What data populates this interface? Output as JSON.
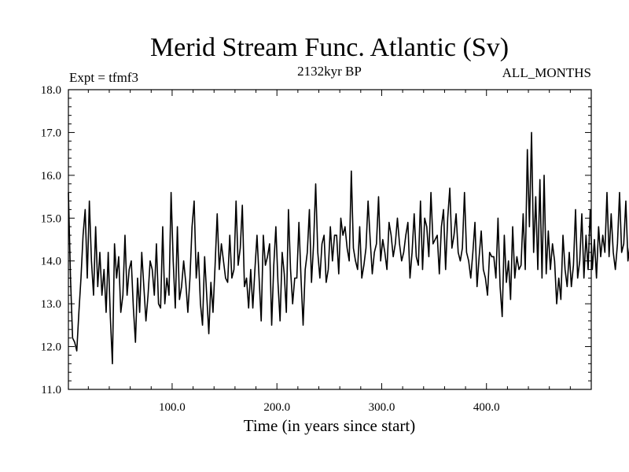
{
  "chart_data": {
    "type": "line",
    "title": "Merid Stream Func. Atlantic (Sv)",
    "subtitle_left": "Expt = tfmf3",
    "subtitle_center": "2132kyr BP",
    "subtitle_right": "ALL_MONTHS",
    "xlabel": "Time (in years since start)",
    "ylabel": "",
    "xlim": [
      1,
      500
    ],
    "ylim": [
      11.0,
      18.0
    ],
    "x_ticks": [
      100,
      200,
      300,
      400
    ],
    "x_tick_labels": [
      "100.0",
      "200.0",
      "300.0",
      "400.0"
    ],
    "y_ticks": [
      11,
      12,
      13,
      14,
      15,
      16,
      17,
      18
    ],
    "y_tick_labels": [
      "11.0",
      "12.0",
      "13.0",
      "14.0",
      "15.0",
      "16.0",
      "17.0",
      "18.0"
    ],
    "series": [
      {
        "name": "AMOC",
        "color": "#000000",
        "x_start": 1,
        "x_step": 2,
        "values": [
          15.6,
          13.6,
          12.2,
          12.1,
          11.9,
          12.8,
          13.6,
          14.6,
          15.2,
          13.6,
          15.4,
          14.0,
          13.2,
          14.8,
          13.4,
          14.2,
          13.2,
          13.8,
          12.8,
          14.2,
          12.7,
          11.6,
          14.4,
          13.6,
          14.1,
          12.8,
          13.2,
          14.6,
          13.2,
          13.8,
          14.0,
          12.9,
          12.1,
          13.6,
          12.8,
          14.2,
          13.4,
          12.6,
          13.2,
          14.0,
          13.8,
          13.2,
          14.4,
          13.0,
          12.9,
          14.8,
          13.0,
          13.6,
          13.2,
          15.6,
          14.0,
          12.9,
          14.8,
          13.1,
          13.4,
          14.0,
          13.5,
          12.8,
          13.6,
          14.8,
          15.4,
          13.6,
          14.2,
          13.0,
          12.5,
          14.1,
          13.2,
          12.3,
          13.5,
          12.8,
          13.9,
          15.1,
          13.8,
          14.4,
          14.0,
          13.6,
          13.5,
          14.6,
          13.6,
          13.8,
          15.4,
          13.9,
          14.3,
          15.3,
          13.4,
          13.6,
          12.9,
          13.8,
          12.9,
          13.8,
          14.6,
          13.6,
          12.6,
          14.6,
          13.9,
          14.1,
          14.4,
          12.5,
          13.9,
          14.8,
          13.5,
          12.6,
          14.2,
          13.7,
          12.8,
          15.2,
          13.8,
          13.0,
          13.6,
          13.6,
          14.9,
          13.6,
          12.5,
          13.8,
          14.2,
          15.2,
          13.5,
          14.4,
          15.8,
          14.2,
          13.6,
          14.4,
          14.6,
          13.5,
          13.8,
          14.8,
          14.0,
          14.6,
          14.6,
          13.7,
          15.0,
          14.6,
          14.8,
          14.3,
          14.0,
          16.1,
          14.3,
          14.0,
          13.8,
          14.8,
          13.6,
          13.9,
          14.3,
          15.4,
          14.5,
          13.7,
          14.2,
          14.4,
          15.5,
          14.0,
          14.5,
          14.2,
          13.8,
          14.9,
          14.6,
          14.1,
          14.4,
          15.0,
          14.4,
          14.0,
          14.2,
          14.6,
          14.9,
          13.6,
          14.2,
          15.1,
          14.1,
          13.9,
          15.4,
          13.8,
          15.0,
          14.8,
          14.1,
          15.6,
          14.4,
          14.5,
          14.6,
          13.7,
          14.8,
          15.2,
          13.8,
          15.0,
          15.7,
          14.3,
          14.6,
          15.1,
          14.2,
          14.0,
          14.3,
          15.6,
          14.2,
          14.0,
          13.6,
          14.2,
          14.9,
          13.4,
          14.1,
          14.7,
          13.8,
          13.6,
          13.2,
          14.2,
          14.1,
          14.1,
          13.6,
          15.0,
          13.4,
          12.7,
          14.6,
          13.5,
          14.0,
          13.1,
          14.8,
          13.6,
          14.1,
          13.8,
          13.9,
          15.1,
          13.8,
          16.6,
          14.8,
          17.0,
          14.2,
          15.5,
          13.8,
          15.9,
          13.6,
          16.0,
          13.7,
          14.7,
          13.8,
          14.4,
          14.0,
          13.0,
          13.6,
          13.1,
          14.6,
          13.8,
          13.4,
          14.2,
          13.4,
          13.9,
          15.2,
          13.6,
          14.0,
          15.1,
          13.6,
          14.6,
          13.8,
          15.2,
          13.8,
          14.5,
          13.6,
          14.8,
          14.1,
          14.6,
          14.2,
          15.6,
          14.1,
          15.1,
          14.2,
          13.8,
          14.4,
          15.6,
          14.2,
          14.4,
          15.4,
          14.0,
          14.4,
          14.6,
          16.2,
          14.2,
          15.4,
          14.4,
          14.0,
          15.8,
          13.6,
          15.0,
          13.5,
          14.0,
          14.5,
          13.6,
          13.5,
          14.6,
          14.0,
          14.4,
          14.6,
          14.2,
          14.8,
          13.4,
          14.4,
          14.0,
          15.0,
          14.1,
          13.5,
          13.9,
          14.0,
          12.6,
          14.2,
          14.0,
          13.0,
          15.4,
          14.2,
          14.5,
          14.0,
          13.5,
          15.0,
          14.5,
          13.7,
          14.0,
          14.8,
          14.1,
          13.7,
          13.8,
          15.6,
          13.6,
          14.2,
          14.6,
          13.3,
          15.2,
          14.0,
          12.1,
          14.0,
          14.0,
          13.8,
          14.6,
          14.1,
          13.0,
          14.2,
          14.8,
          14.0,
          15.0,
          14.2,
          14.5,
          13.8,
          15.2,
          13.3,
          14.6,
          14.8,
          13.8,
          15.8,
          14.0,
          14.4,
          15.0,
          14.2,
          14.8,
          13.5,
          15.2,
          13.0,
          15.4,
          14.6,
          14.2,
          13.4,
          15.2,
          14.5,
          16.0,
          14.4,
          15.8,
          14.2,
          15.9,
          14.4,
          14.8,
          15.8,
          14.2,
          15.6,
          13.9,
          15.0,
          14.4,
          14.1,
          15.2,
          14.6,
          14.8,
          14.0,
          15.6,
          14.2,
          14.6,
          15.2,
          13.8,
          15.6,
          16.0,
          15.2,
          14.3,
          15.3,
          14.0,
          15.4,
          14.4,
          14.8,
          15.6,
          14.2,
          15.9,
          16.6,
          15.4,
          16.2,
          14.8,
          16.1,
          15.1,
          17.0,
          16.0,
          15.7,
          15.4,
          14.9,
          16.2,
          15.3,
          16.4,
          15.0,
          14.4,
          13.6,
          13.8,
          14.4,
          14.8,
          13.9,
          14.5,
          14.2,
          14.6,
          15.1
        ]
      }
    ]
  }
}
